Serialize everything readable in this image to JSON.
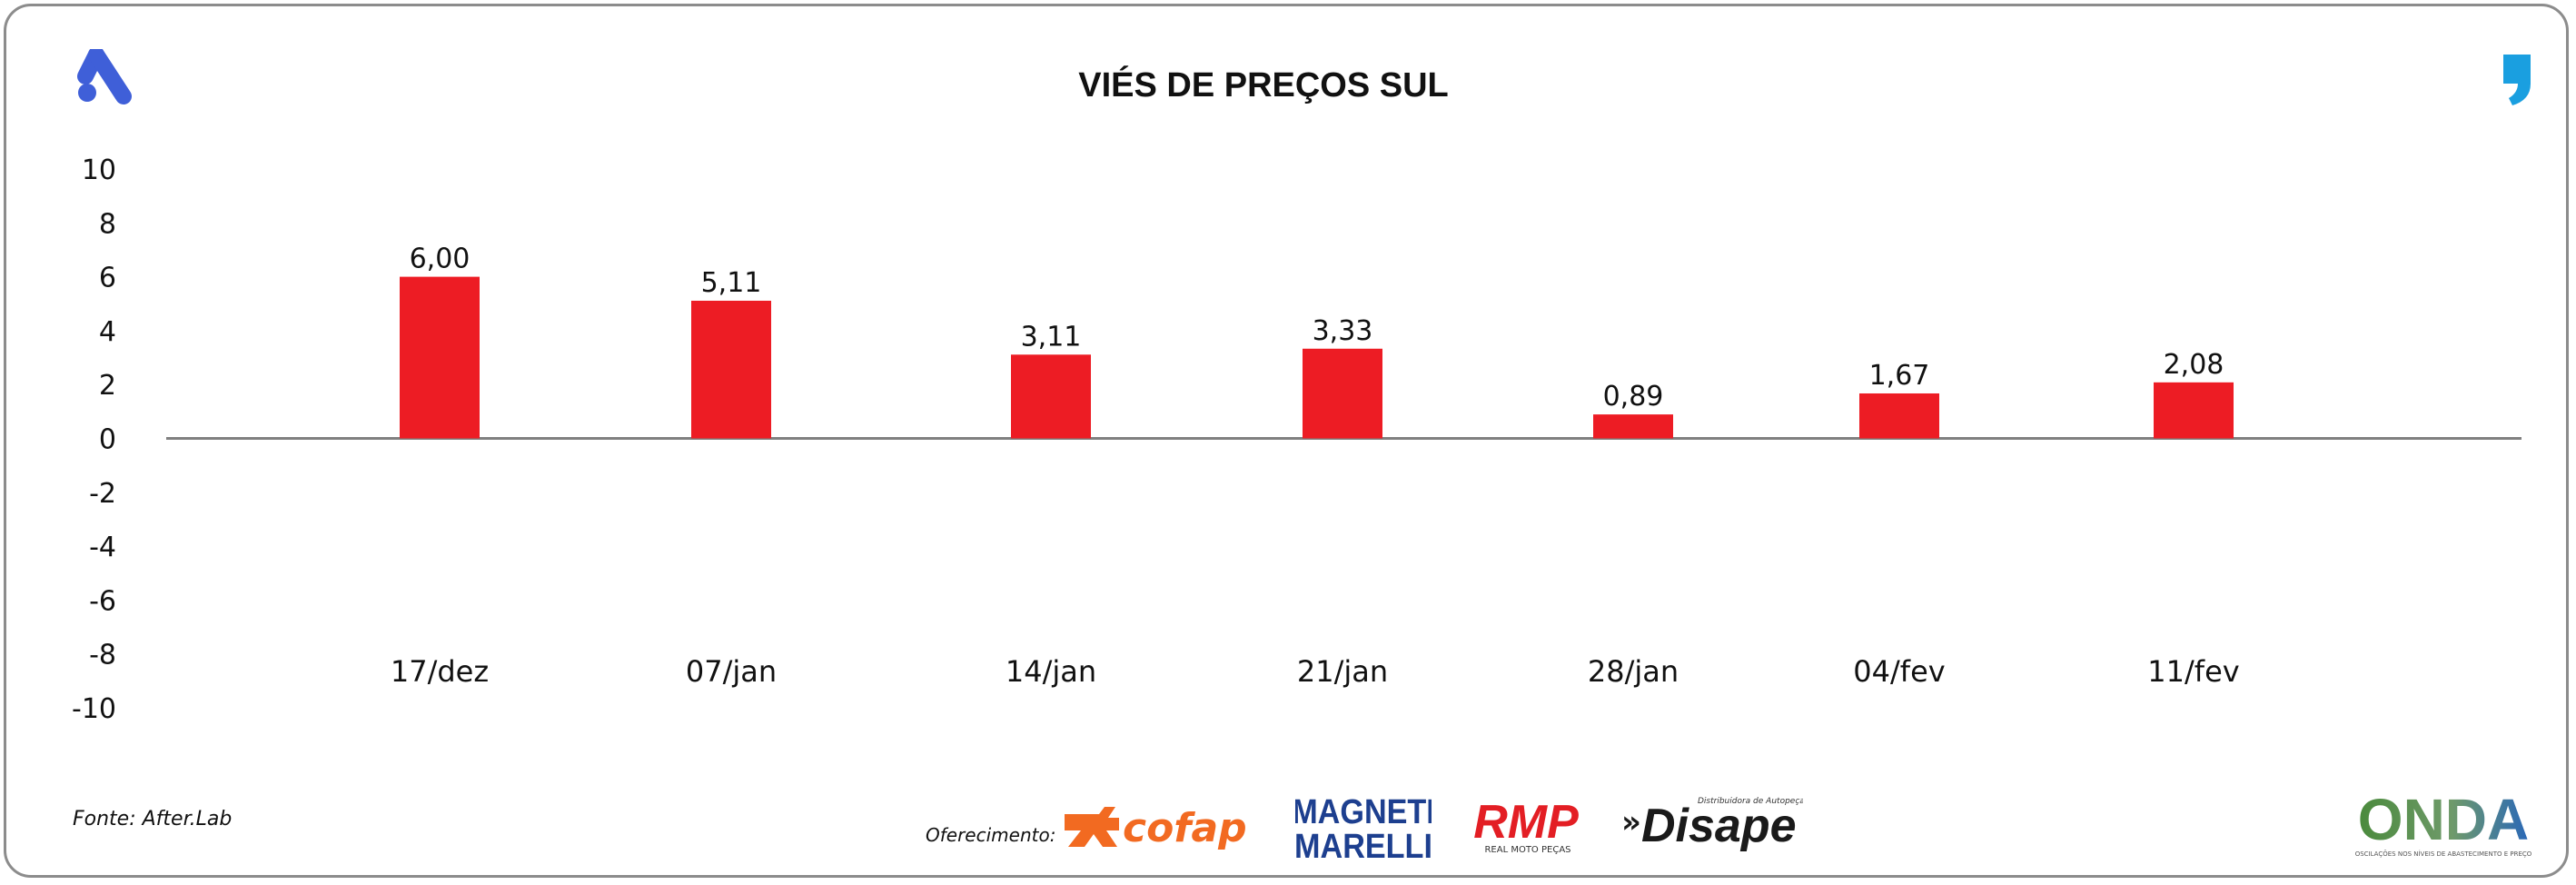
{
  "header": {
    "title": "VIÉS DE PREÇOS SUL"
  },
  "footer": {
    "source": "Fonte: After.Lab",
    "sponsor_label": "Oferecimento:",
    "sponsors": [
      {
        "name": "cofap",
        "label": "cofap"
      },
      {
        "name": "magneti-marelli",
        "line1": "MAGNETI",
        "line2": "MARELLI"
      },
      {
        "name": "rmp",
        "label": "RMP",
        "sub": "REAL MOTO PEÇAS"
      },
      {
        "name": "disape",
        "label": "Disape",
        "sub": "Distribuidora de Autopeças"
      }
    ],
    "onda": {
      "label": "ONDA",
      "sub": "OSCILAÇÕES NOS NÍVEIS DE ABASTECIMENTO E PREÇO"
    }
  },
  "colors": {
    "bar": "#ed1c24",
    "axis": "#808080",
    "app_logo": "#3f5fd8",
    "quote": "#1a9fe0",
    "cofap": "#f26a21",
    "magneti": "#1d3f8f",
    "rmp": "#e31e24",
    "disape": "#1a1a1a",
    "onda_green": "#4a8a3c",
    "onda_blue": "#2a68b8"
  },
  "chart_data": {
    "type": "bar",
    "title": "VIÉS DE PREÇOS SUL",
    "categories": [
      "17/dez",
      "07/jan",
      "14/jan",
      "21/jan",
      "28/jan",
      "04/fev",
      "11/fev"
    ],
    "values": [
      6.0,
      5.11,
      3.11,
      3.33,
      0.89,
      1.67,
      2.08
    ],
    "value_labels": [
      "6,00",
      "5,11",
      "3,11",
      "3,33",
      "0,89",
      "1,67",
      "2,08"
    ],
    "ylim": [
      -10,
      10
    ],
    "yticks": [
      10,
      8,
      6,
      4,
      2,
      0,
      -2,
      -4,
      -6,
      -8,
      -10
    ],
    "xlabel": "",
    "ylabel": "",
    "grid": false,
    "legend": "none"
  }
}
